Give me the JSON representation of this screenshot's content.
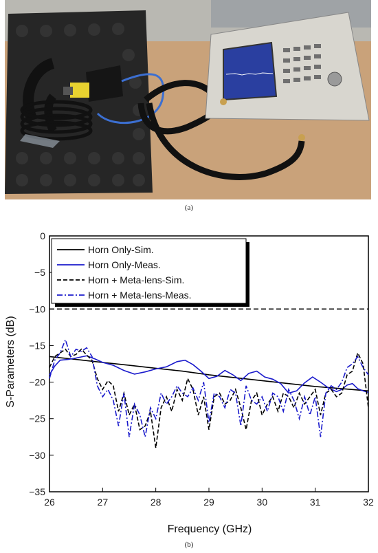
{
  "figure": {
    "caption_a": "(a)",
    "caption_b": "(b)"
  },
  "chart_data": {
    "type": "line",
    "xlabel": "Frequency (GHz)",
    "ylabel": "S-Parameters (dB)",
    "xlim": [
      26,
      32
    ],
    "ylim": [
      -35,
      0
    ],
    "x_ticks": [
      26,
      27,
      28,
      29,
      30,
      31,
      32
    ],
    "y_ticks": [
      0,
      -5,
      -10,
      -15,
      -20,
      -25,
      -30,
      -35
    ],
    "legend_position": "top-left",
    "reference_line": {
      "y": -10,
      "color": "#000000",
      "style": "dashed"
    },
    "series": [
      {
        "name": "Horn Only-Sim.",
        "color": "#000000",
        "style": "solid",
        "x": [
          26,
          26.5,
          27,
          27.5,
          28,
          28.5,
          29,
          29.5,
          30,
          30.5,
          31,
          31.5,
          32
        ],
        "y": [
          -16.5,
          -16.9,
          -17.3,
          -17.7,
          -18.1,
          -18.5,
          -19.0,
          -19.4,
          -19.8,
          -20.2,
          -20.6,
          -20.9,
          -21.2
        ]
      },
      {
        "name": "Horn Only-Meas.",
        "color": "#1a1acc",
        "style": "solid",
        "x": [
          26,
          26.1,
          26.2,
          26.35,
          26.5,
          26.7,
          26.85,
          27,
          27.2,
          27.4,
          27.6,
          27.8,
          28,
          28.2,
          28.4,
          28.55,
          28.7,
          28.85,
          29,
          29.15,
          29.3,
          29.45,
          29.6,
          29.75,
          29.9,
          30.05,
          30.2,
          30.35,
          30.5,
          30.65,
          30.8,
          30.95,
          31.1,
          31.25,
          31.4,
          31.5,
          31.6,
          31.7,
          31.8,
          31.9,
          32
        ],
        "y": [
          -19.0,
          -17.8,
          -17.0,
          -16.9,
          -16.7,
          -16.4,
          -16.8,
          -17.3,
          -17.7,
          -18.4,
          -18.9,
          -18.6,
          -18.2,
          -17.9,
          -17.2,
          -17.0,
          -17.6,
          -18.5,
          -19.5,
          -19.2,
          -18.4,
          -19.0,
          -19.8,
          -18.8,
          -18.5,
          -19.3,
          -19.6,
          -20.2,
          -21.5,
          -21.2,
          -20.1,
          -19.3,
          -20.0,
          -20.8,
          -21.3,
          -21.0,
          -20.4,
          -20.2,
          -20.9,
          -21.2,
          -21.4
        ]
      },
      {
        "name": "Horn + Meta-lens-Sim.",
        "color": "#000000",
        "style": "dashed",
        "x": [
          26,
          26.1,
          26.2,
          26.3,
          26.4,
          26.5,
          26.6,
          26.7,
          26.8,
          26.9,
          27,
          27.1,
          27.2,
          27.3,
          27.4,
          27.5,
          27.6,
          27.7,
          27.8,
          27.9,
          28,
          28.1,
          28.2,
          28.3,
          28.4,
          28.5,
          28.6,
          28.7,
          28.8,
          28.9,
          29,
          29.1,
          29.2,
          29.3,
          29.4,
          29.5,
          29.6,
          29.7,
          29.8,
          29.9,
          30,
          30.1,
          30.2,
          30.3,
          30.4,
          30.5,
          30.6,
          30.7,
          30.8,
          30.9,
          31,
          31.1,
          31.2,
          31.3,
          31.4,
          31.5,
          31.6,
          31.7,
          31.8,
          31.9,
          32
        ],
        "y": [
          -18.0,
          -16.5,
          -16.0,
          -15.5,
          -16.5,
          -16.2,
          -15.5,
          -16.3,
          -17.0,
          -19.5,
          -21.0,
          -19.8,
          -20.5,
          -24.0,
          -21.5,
          -24.5,
          -23.0,
          -26.5,
          -26.0,
          -24.0,
          -29.0,
          -23.5,
          -22.0,
          -24.0,
          -21.0,
          -22.5,
          -19.5,
          -21.0,
          -24.5,
          -22.0,
          -26.5,
          -22.0,
          -21.5,
          -23.0,
          -22.5,
          -21.0,
          -23.5,
          -26.5,
          -22.5,
          -21.5,
          -24.5,
          -23.0,
          -22.0,
          -24.0,
          -21.5,
          -22.0,
          -23.5,
          -21.5,
          -23.0,
          -22.0,
          -21.0,
          -24.5,
          -21.5,
          -21.0,
          -22.0,
          -21.5,
          -19.0,
          -18.5,
          -16.0,
          -17.5,
          -23.5
        ]
      },
      {
        "name": "Horn + Meta-lens-Meas.",
        "color": "#1a1acc",
        "style": "dashdot",
        "x": [
          26,
          26.1,
          26.2,
          26.3,
          26.4,
          26.5,
          26.6,
          26.7,
          26.8,
          26.9,
          27,
          27.1,
          27.2,
          27.3,
          27.4,
          27.5,
          27.6,
          27.7,
          27.8,
          27.9,
          28,
          28.1,
          28.2,
          28.3,
          28.4,
          28.5,
          28.6,
          28.7,
          28.8,
          28.9,
          29,
          29.1,
          29.2,
          29.3,
          29.4,
          29.5,
          29.6,
          29.7,
          29.8,
          29.9,
          30,
          30.1,
          30.2,
          30.3,
          30.4,
          30.5,
          30.6,
          30.7,
          30.8,
          30.9,
          31,
          31.1,
          31.2,
          31.3,
          31.4,
          31.5,
          31.6,
          31.7,
          31.8,
          31.9,
          32
        ],
        "y": [
          -19.5,
          -17.0,
          -16.0,
          -14.2,
          -16.5,
          -15.5,
          -15.8,
          -15.3,
          -16.5,
          -20.5,
          -22.0,
          -21.0,
          -22.5,
          -26.0,
          -21.5,
          -27.5,
          -23.0,
          -24.5,
          -27.5,
          -23.5,
          -25.0,
          -21.5,
          -23.0,
          -22.0,
          -20.5,
          -21.5,
          -22.0,
          -20.8,
          -22.5,
          -20.0,
          -25.5,
          -21.5,
          -22.0,
          -23.5,
          -21.0,
          -21.5,
          -26.0,
          -20.5,
          -22.5,
          -23.0,
          -22.0,
          -24.0,
          -21.5,
          -22.0,
          -24.0,
          -21.0,
          -22.5,
          -25.0,
          -22.0,
          -24.5,
          -22.0,
          -27.5,
          -21.5,
          -20.5,
          -21.0,
          -20.0,
          -18.0,
          -17.5,
          -16.5,
          -18.0,
          -19.0
        ]
      }
    ]
  }
}
